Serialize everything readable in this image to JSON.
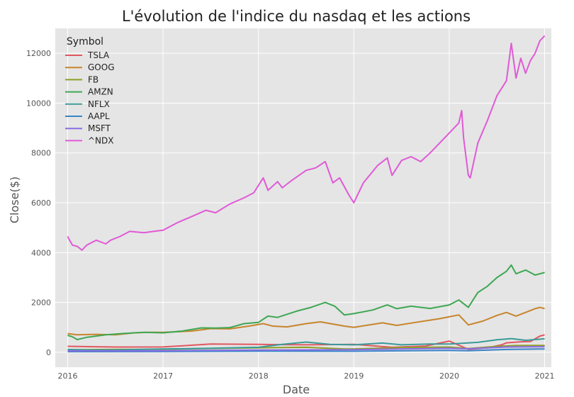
{
  "chart_data": {
    "type": "line",
    "title": "L'évolution de l'indice du nasdaq et les actions",
    "xlabel": "Date",
    "ylabel": "Close($)",
    "x_ticks": [
      "2016",
      "2017",
      "2018",
      "2019",
      "2020",
      "2021"
    ],
    "y_ticks": [
      "0",
      "2000",
      "4000",
      "6000",
      "8000",
      "10000",
      "12000"
    ],
    "xlim": [
      2015.87,
      2021.07
    ],
    "ylim": [
      -600,
      13000
    ],
    "grid": true,
    "legend": {
      "title": "Symbol",
      "placement": "top-left"
    },
    "series": [
      {
        "name": "TSLA",
        "color": "#e1575f",
        "points": [
          [
            2016.0,
            240
          ],
          [
            2016.5,
            210
          ],
          [
            2017.0,
            215
          ],
          [
            2017.5,
            330
          ],
          [
            2018.0,
            315
          ],
          [
            2018.5,
            300
          ],
          [
            2019.0,
            320
          ],
          [
            2019.4,
            200
          ],
          [
            2019.75,
            250
          ],
          [
            2020.0,
            450
          ],
          [
            2020.2,
            120
          ],
          [
            2020.4,
            180
          ],
          [
            2020.55,
            300
          ],
          [
            2020.6,
            380
          ],
          [
            2020.75,
            420
          ],
          [
            2020.85,
            430
          ],
          [
            2020.95,
            650
          ],
          [
            2021.0,
            700
          ]
        ]
      },
      {
        "name": "GOOG",
        "color": "#c7852c",
        "points": [
          [
            2016.0,
            750
          ],
          [
            2016.1,
            700
          ],
          [
            2016.3,
            720
          ],
          [
            2016.5,
            700
          ],
          [
            2016.7,
            780
          ],
          [
            2016.85,
            800
          ],
          [
            2017.0,
            800
          ],
          [
            2017.3,
            850
          ],
          [
            2017.5,
            950
          ],
          [
            2017.7,
            940
          ],
          [
            2017.9,
            1050
          ],
          [
            2018.05,
            1150
          ],
          [
            2018.15,
            1050
          ],
          [
            2018.3,
            1020
          ],
          [
            2018.5,
            1150
          ],
          [
            2018.65,
            1220
          ],
          [
            2018.9,
            1050
          ],
          [
            2019.0,
            1000
          ],
          [
            2019.3,
            1180
          ],
          [
            2019.45,
            1080
          ],
          [
            2019.65,
            1200
          ],
          [
            2019.9,
            1350
          ],
          [
            2020.1,
            1500
          ],
          [
            2020.2,
            1100
          ],
          [
            2020.35,
            1250
          ],
          [
            2020.5,
            1480
          ],
          [
            2020.6,
            1600
          ],
          [
            2020.7,
            1450
          ],
          [
            2020.8,
            1600
          ],
          [
            2020.9,
            1750
          ],
          [
            2020.95,
            1800
          ],
          [
            2021.0,
            1750
          ]
        ]
      },
      {
        "name": "FB",
        "color": "#8f9e27",
        "points": [
          [
            2016.0,
            100
          ],
          [
            2016.5,
            115
          ],
          [
            2017.0,
            120
          ],
          [
            2017.5,
            155
          ],
          [
            2018.0,
            180
          ],
          [
            2018.5,
            200
          ],
          [
            2018.9,
            130
          ],
          [
            2019.0,
            135
          ],
          [
            2019.5,
            190
          ],
          [
            2020.0,
            210
          ],
          [
            2020.2,
            150
          ],
          [
            2020.5,
            240
          ],
          [
            2020.7,
            270
          ],
          [
            2021.0,
            275
          ]
        ]
      },
      {
        "name": "AMZN",
        "color": "#3fa753",
        "points": [
          [
            2016.0,
            680
          ],
          [
            2016.05,
            620
          ],
          [
            2016.1,
            510
          ],
          [
            2016.2,
            600
          ],
          [
            2016.4,
            700
          ],
          [
            2016.6,
            760
          ],
          [
            2016.8,
            800
          ],
          [
            2017.0,
            780
          ],
          [
            2017.2,
            850
          ],
          [
            2017.4,
            980
          ],
          [
            2017.55,
            970
          ],
          [
            2017.7,
            990
          ],
          [
            2017.85,
            1150
          ],
          [
            2018.0,
            1200
          ],
          [
            2018.1,
            1450
          ],
          [
            2018.2,
            1400
          ],
          [
            2018.4,
            1650
          ],
          [
            2018.55,
            1800
          ],
          [
            2018.7,
            2000
          ],
          [
            2018.8,
            1850
          ],
          [
            2018.9,
            1500
          ],
          [
            2019.0,
            1550
          ],
          [
            2019.2,
            1700
          ],
          [
            2019.35,
            1900
          ],
          [
            2019.45,
            1750
          ],
          [
            2019.6,
            1850
          ],
          [
            2019.8,
            1760
          ],
          [
            2020.0,
            1900
          ],
          [
            2020.1,
            2100
          ],
          [
            2020.2,
            1800
          ],
          [
            2020.3,
            2400
          ],
          [
            2020.4,
            2650
          ],
          [
            2020.5,
            3000
          ],
          [
            2020.6,
            3250
          ],
          [
            2020.65,
            3500
          ],
          [
            2020.7,
            3150
          ],
          [
            2020.8,
            3300
          ],
          [
            2020.9,
            3100
          ],
          [
            2021.0,
            3200
          ]
        ]
      },
      {
        "name": "NFLX",
        "color": "#3a9a99",
        "points": [
          [
            2016.0,
            110
          ],
          [
            2016.2,
            95
          ],
          [
            2016.5,
            95
          ],
          [
            2016.8,
            120
          ],
          [
            2017.0,
            130
          ],
          [
            2017.5,
            160
          ],
          [
            2018.0,
            200
          ],
          [
            2018.25,
            320
          ],
          [
            2018.5,
            410
          ],
          [
            2018.75,
            320
          ],
          [
            2019.0,
            300
          ],
          [
            2019.3,
            370
          ],
          [
            2019.5,
            300
          ],
          [
            2019.8,
            330
          ],
          [
            2020.0,
            330
          ],
          [
            2020.3,
            400
          ],
          [
            2020.5,
            500
          ],
          [
            2020.65,
            550
          ],
          [
            2020.8,
            480
          ],
          [
            2021.0,
            540
          ]
        ]
      },
      {
        "name": "AAPL",
        "color": "#3a85c6",
        "points": [
          [
            2016.0,
            26
          ],
          [
            2017.0,
            30
          ],
          [
            2018.0,
            43
          ],
          [
            2019.0,
            40
          ],
          [
            2020.0,
            75
          ],
          [
            2020.2,
            60
          ],
          [
            2020.6,
            115
          ],
          [
            2021.0,
            133
          ]
        ]
      },
      {
        "name": "MSFT",
        "color": "#8c6ce6",
        "points": [
          [
            2016.0,
            55
          ],
          [
            2017.0,
            62
          ],
          [
            2018.0,
            88
          ],
          [
            2019.0,
            102
          ],
          [
            2019.5,
            135
          ],
          [
            2020.0,
            160
          ],
          [
            2020.2,
            140
          ],
          [
            2020.6,
            210
          ],
          [
            2021.0,
            222
          ]
        ]
      },
      {
        "name": "^NDX",
        "color": "#e05ad6",
        "points": [
          [
            2016.0,
            4650
          ],
          [
            2016.02,
            4500
          ],
          [
            2016.05,
            4300
          ],
          [
            2016.1,
            4250
          ],
          [
            2016.15,
            4100
          ],
          [
            2016.2,
            4300
          ],
          [
            2016.3,
            4500
          ],
          [
            2016.4,
            4350
          ],
          [
            2016.45,
            4500
          ],
          [
            2016.55,
            4650
          ],
          [
            2016.65,
            4850
          ],
          [
            2016.8,
            4800
          ],
          [
            2016.9,
            4850
          ],
          [
            2017.0,
            4900
          ],
          [
            2017.15,
            5200
          ],
          [
            2017.3,
            5450
          ],
          [
            2017.45,
            5700
          ],
          [
            2017.55,
            5600
          ],
          [
            2017.7,
            5950
          ],
          [
            2017.85,
            6200
          ],
          [
            2017.95,
            6400
          ],
          [
            2018.05,
            7000
          ],
          [
            2018.1,
            6500
          ],
          [
            2018.2,
            6850
          ],
          [
            2018.25,
            6600
          ],
          [
            2018.35,
            6900
          ],
          [
            2018.5,
            7300
          ],
          [
            2018.6,
            7400
          ],
          [
            2018.7,
            7650
          ],
          [
            2018.78,
            6800
          ],
          [
            2018.85,
            7000
          ],
          [
            2018.95,
            6300
          ],
          [
            2019.0,
            6000
          ],
          [
            2019.1,
            6800
          ],
          [
            2019.25,
            7500
          ],
          [
            2019.35,
            7800
          ],
          [
            2019.4,
            7100
          ],
          [
            2019.5,
            7700
          ],
          [
            2019.6,
            7850
          ],
          [
            2019.7,
            7650
          ],
          [
            2019.8,
            8000
          ],
          [
            2019.9,
            8400
          ],
          [
            2020.0,
            8800
          ],
          [
            2020.1,
            9200
          ],
          [
            2020.13,
            9700
          ],
          [
            2020.15,
            8600
          ],
          [
            2020.2,
            7100
          ],
          [
            2020.22,
            7000
          ],
          [
            2020.3,
            8400
          ],
          [
            2020.4,
            9300
          ],
          [
            2020.5,
            10300
          ],
          [
            2020.6,
            10900
          ],
          [
            2020.65,
            12400
          ],
          [
            2020.7,
            11000
          ],
          [
            2020.75,
            11800
          ],
          [
            2020.8,
            11200
          ],
          [
            2020.85,
            11700
          ],
          [
            2020.9,
            12000
          ],
          [
            2020.95,
            12500
          ],
          [
            2021.0,
            12700
          ]
        ]
      }
    ]
  }
}
